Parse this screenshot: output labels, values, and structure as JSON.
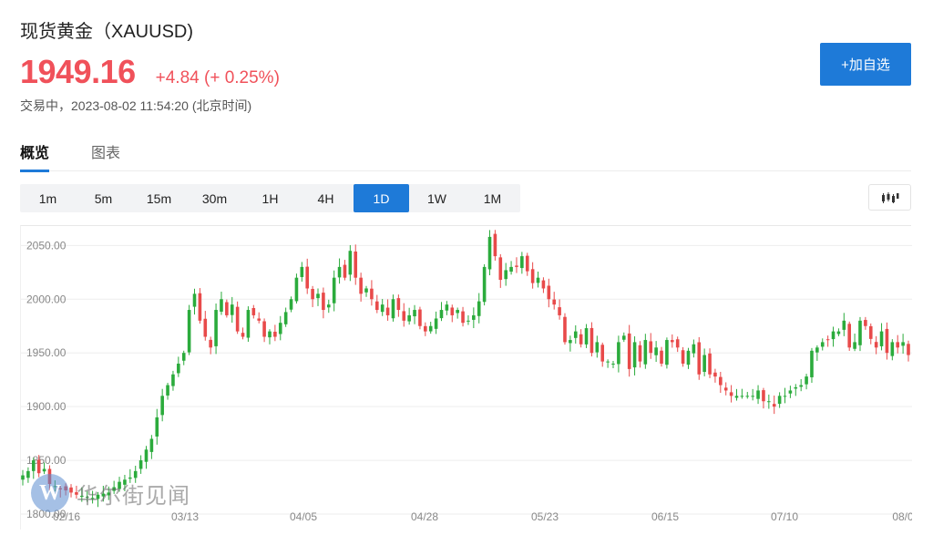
{
  "header": {
    "title": "现货黄金（XAUUSD)",
    "price": "1949.16",
    "change": "+4.84 (+ 0.25%)",
    "status": "交易中，2023-08-02 11:54:20 (北京时间)",
    "watch_label": "+加自选"
  },
  "tabs": [
    {
      "label": "概览",
      "active": true
    },
    {
      "label": "图表",
      "active": false
    }
  ],
  "periods": [
    {
      "label": "1m",
      "active": false
    },
    {
      "label": "5m",
      "active": false
    },
    {
      "label": "15m",
      "active": false
    },
    {
      "label": "30m",
      "active": false
    },
    {
      "label": "1H",
      "active": false
    },
    {
      "label": "4H",
      "active": false
    },
    {
      "label": "1D",
      "active": true
    },
    {
      "label": "1W",
      "active": false
    },
    {
      "label": "1M",
      "active": false
    }
  ],
  "chart_type_icon": "candlestick-icon",
  "watermark": {
    "logo_letter": "W",
    "text": "华尔街见闻"
  },
  "colors": {
    "up": "#2bab3c",
    "down": "#e84a4a",
    "accent": "#1e7ad8",
    "price": "#f0515a"
  },
  "chart_data": {
    "type": "candlestick",
    "ylim": [
      1800,
      2063
    ],
    "y_ticks": [
      "2050.00",
      "2000.00",
      "1950.00",
      "1900.00",
      "1850.00",
      "1800.00"
    ],
    "x_ticks": [
      "02/16",
      "03/13",
      "04/05",
      "04/28",
      "05/23",
      "06/15",
      "07/10",
      "08/0"
    ],
    "grid": true,
    "up_color": "#2bab3c",
    "down_color": "#e84a4a",
    "closes": [
      1836,
      1840,
      1850,
      1838,
      1842,
      1828,
      1826,
      1823,
      1822,
      1820,
      1818,
      1817,
      1816,
      1815,
      1818,
      1819,
      1820,
      1825,
      1830,
      1832,
      1834,
      1840,
      1850,
      1860,
      1870,
      1890,
      1910,
      1920,
      1930,
      1940,
      1950,
      1990,
      2005,
      1980,
      1965,
      1955,
      1990,
      2000,
      1985,
      1995,
      1970,
      1965,
      1990,
      1985,
      1980,
      1965,
      1970,
      1965,
      1978,
      1988,
      2000,
      2020,
      2030,
      2010,
      2000,
      2005,
      1990,
      1995,
      2020,
      2030,
      2020,
      2045,
      2020,
      2005,
      2010,
      2000,
      1990,
      1995,
      1985,
      2000,
      1990,
      1980,
      1985,
      1990,
      1975,
      1970,
      1975,
      1982,
      1990,
      1995,
      1985,
      1990,
      1978,
      1980,
      1985,
      1998,
      2030,
      2058,
      2040,
      2018,
      2027,
      2030,
      2030,
      2040,
      2026,
      2015,
      2020,
      2010,
      2000,
      1995,
      1985,
      1960,
      1962,
      1970,
      1958,
      1973,
      1950,
      1960,
      1942,
      1942,
      1940,
      1960,
      1966,
      1935,
      1960,
      1942,
      1962,
      1950,
      1955,
      1940,
      1962,
      1960,
      1955,
      1940,
      1952,
      1958,
      1930,
      1948,
      1930,
      1928,
      1920,
      1915,
      1910,
      1910,
      1910,
      1910,
      1910,
      1915,
      1905,
      1905,
      1900,
      1910,
      1910,
      1915,
      1918,
      1920,
      1928,
      1952,
      1955,
      1960,
      1962,
      1970,
      1970,
      1980,
      1955,
      1960,
      1980,
      1975,
      1963,
      1955,
      1970,
      1950,
      1960,
      1955,
      1960,
      1948
    ],
    "candles_note": "daily OHLC series, 2023-02 to 2023-08"
  }
}
